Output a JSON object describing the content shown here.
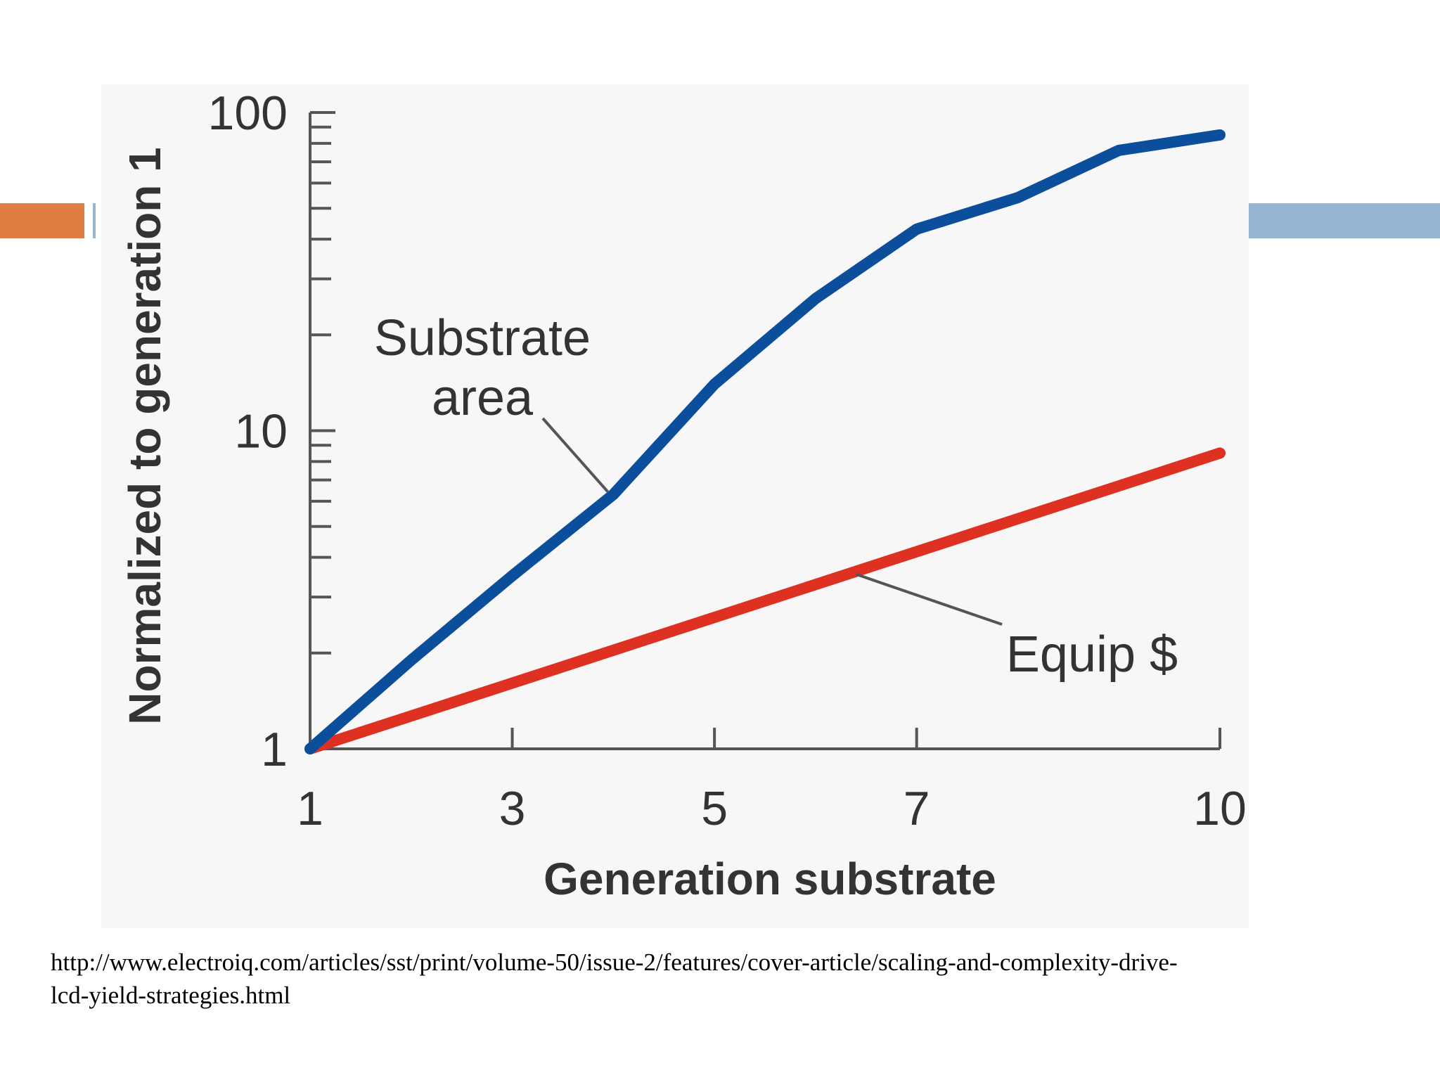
{
  "colors": {
    "background": "#ffffff",
    "panel": "#f7f7f7",
    "accent_orange": "#e07e42",
    "accent_blue": "#94b6d2",
    "axis": "#555555",
    "text": "#333333"
  },
  "chart_data": {
    "type": "line",
    "xlabel": "Generation substrate",
    "ylabel": "Normalized to generation 1",
    "xlim": [
      1,
      10
    ],
    "ylim": [
      1,
      100
    ],
    "y_scale": "log",
    "x_ticks": [
      1,
      3,
      5,
      7,
      10
    ],
    "x_tick_labels": [
      "1",
      "3",
      "5",
      "7",
      "10"
    ],
    "y_ticks": [
      1,
      10,
      100
    ],
    "y_tick_labels": [
      "1",
      "10",
      "100"
    ],
    "grid": false,
    "legend": "none",
    "series": [
      {
        "name": "Substrate area",
        "color": "#0b4f9c",
        "x": [
          1,
          2,
          3,
          4,
          5,
          6,
          7,
          8,
          9,
          10
        ],
        "y": [
          1,
          1.9,
          3.5,
          6.3,
          14,
          26,
          43,
          54,
          76,
          85
        ]
      },
      {
        "name": "Equip $",
        "color": "#de3121",
        "x": [
          1,
          10
        ],
        "y": [
          1,
          8.5
        ]
      }
    ],
    "annotations": [
      {
        "text": [
          "Substrate",
          "area"
        ],
        "series": 0
      },
      {
        "text": [
          "Equip $"
        ],
        "series": 1
      }
    ]
  },
  "source": {
    "line1": "http://www.electroiq.com/articles/sst/print/volume-50/issue-2/features/cover-article/scaling-and-complexity-drive-",
    "line2": "lcd-yield-strategies.html"
  }
}
